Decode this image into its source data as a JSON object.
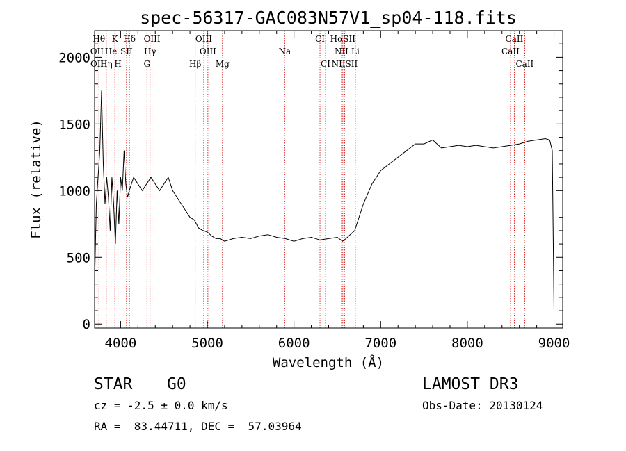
{
  "chart_data": {
    "type": "line",
    "title": "spec-56317-GAC083N57V1_sp04-118.fits",
    "xlabel": "Wavelength (Å)",
    "ylabel": "Flux (relative)",
    "xlim": [
      3700,
      9100
    ],
    "ylim": [
      -30,
      2200
    ],
    "xticks": [
      4000,
      5000,
      6000,
      7000,
      8000,
      9000
    ],
    "yticks": [
      0,
      500,
      1000,
      1500,
      2000
    ],
    "series": [
      {
        "name": "flux",
        "x": [
          3700,
          3720,
          3740,
          3760,
          3780,
          3800,
          3820,
          3840,
          3860,
          3880,
          3900,
          3920,
          3940,
          3960,
          3980,
          4000,
          4020,
          4040,
          4060,
          4080,
          4100,
          4150,
          4200,
          4250,
          4300,
          4350,
          4400,
          4450,
          4500,
          4550,
          4600,
          4650,
          4700,
          4750,
          4800,
          4850,
          4900,
          4950,
          5000,
          5050,
          5100,
          5150,
          5200,
          5300,
          5400,
          5500,
          5600,
          5700,
          5800,
          5900,
          6000,
          6100,
          6200,
          6300,
          6400,
          6500,
          6560,
          6600,
          6700,
          6800,
          6900,
          7000,
          7100,
          7200,
          7300,
          7400,
          7500,
          7600,
          7700,
          7800,
          7900,
          8000,
          8100,
          8200,
          8300,
          8400,
          8500,
          8600,
          8700,
          8800,
          8900,
          8950,
          8980,
          9000
        ],
        "y": [
          300,
          900,
          1100,
          1300,
          1750,
          1200,
          900,
          1100,
          950,
          700,
          1100,
          900,
          600,
          1000,
          750,
          1100,
          1000,
          1300,
          1050,
          950,
          1000,
          1100,
          1050,
          1000,
          1050,
          1100,
          1050,
          1000,
          1050,
          1100,
          1000,
          950,
          900,
          850,
          800,
          780,
          720,
          700,
          690,
          660,
          640,
          640,
          620,
          640,
          650,
          640,
          660,
          670,
          650,
          640,
          620,
          640,
          650,
          630,
          640,
          650,
          620,
          640,
          700,
          900,
          1050,
          1150,
          1200,
          1250,
          1300,
          1350,
          1350,
          1380,
          1320,
          1330,
          1340,
          1330,
          1340,
          1330,
          1320,
          1330,
          1340,
          1350,
          1370,
          1380,
          1390,
          1380,
          1300,
          100
        ]
      }
    ],
    "lines": [
      {
        "label": "Hθ",
        "wl": 3750,
        "tier": 0
      },
      {
        "label": "K",
        "wl": 3934,
        "tier": 0
      },
      {
        "label": "Hδ",
        "wl": 4102,
        "tier": 0
      },
      {
        "label": "OIII",
        "wl": 4363,
        "tier": 0
      },
      {
        "label": "OIII",
        "wl": 4959,
        "tier": 0
      },
      {
        "label": "CI",
        "wl": 6300,
        "tier": 0
      },
      {
        "label": "HαSII",
        "wl": 6563,
        "tier": 0
      },
      {
        "label": "CaII",
        "wl": 8542,
        "tier": 0
      },
      {
        "label": "OII",
        "wl": 3727,
        "tier": 1
      },
      {
        "label": "He",
        "wl": 3889,
        "tier": 1
      },
      {
        "label": "SII",
        "wl": 4068,
        "tier": 1
      },
      {
        "label": "Hγ",
        "wl": 4340,
        "tier": 1
      },
      {
        "label": "OIII",
        "wl": 5007,
        "tier": 1
      },
      {
        "label": "Na",
        "wl": 5893,
        "tier": 1
      },
      {
        "label": "NII",
        "wl": 6548,
        "tier": 1
      },
      {
        "label": "Li",
        "wl": 6708,
        "tier": 1
      },
      {
        "label": "CaII",
        "wl": 8498,
        "tier": 1
      },
      {
        "label": "OII",
        "wl": 3729,
        "tier": 2
      },
      {
        "label": "Hη",
        "wl": 3835,
        "tier": 2
      },
      {
        "label": "H",
        "wl": 3970,
        "tier": 2
      },
      {
        "label": "G",
        "wl": 4304,
        "tier": 2
      },
      {
        "label": "Hβ",
        "wl": 4861,
        "tier": 2
      },
      {
        "label": "Mg",
        "wl": 5175,
        "tier": 2
      },
      {
        "label": "CI",
        "wl": 6364,
        "tier": 2
      },
      {
        "label": "NIISII",
        "wl": 6584,
        "tier": 2
      },
      {
        "label": "CaII",
        "wl": 8662,
        "tier": 2
      }
    ]
  },
  "info": {
    "class": "STAR",
    "subclass": "G0",
    "survey": "LAMOST DR3",
    "cz": "cz = -2.5 ± 0.0 km/s",
    "obs_date": "Obs-Date: 20130124",
    "radec": "RA =  83.44711, DEC =  57.03964"
  }
}
